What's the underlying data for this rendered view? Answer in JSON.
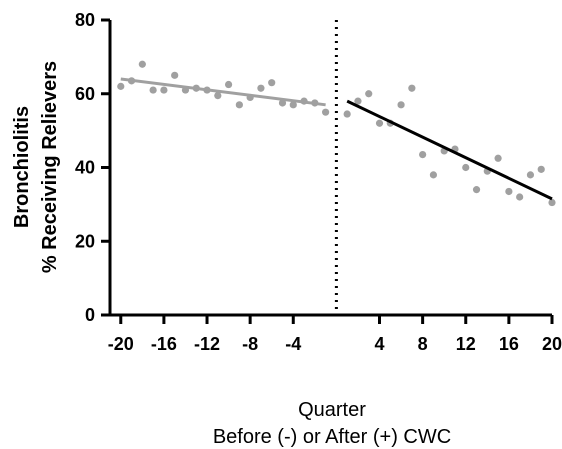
{
  "chart_data": {
    "type": "scatter",
    "xlabel": [
      "Quarter",
      "Before (-) or After (+) CWC"
    ],
    "ylabel": [
      "Bronchiolitis",
      "% Receiving Relievers"
    ],
    "xlim": [
      -21,
      20
    ],
    "ylim": [
      0,
      80
    ],
    "xticks": [
      -20,
      -16,
      -12,
      -8,
      -4,
      4,
      8,
      12,
      16,
      20
    ],
    "yticks": [
      0,
      20,
      40,
      60,
      80
    ],
    "intervention_line_x": 0,
    "grid": false,
    "legend": "none",
    "series": [
      {
        "color": "#a0a0a0",
        "x": [
          -20,
          -19,
          -18,
          -17,
          -16,
          -15,
          -14,
          -13,
          -12,
          -11,
          -10,
          -9,
          -8,
          -7,
          -6,
          -5,
          -4,
          -3,
          -2,
          -1
        ],
        "y": [
          62,
          63.5,
          68,
          61,
          61,
          65,
          61,
          61.5,
          61,
          59.5,
          62.5,
          57,
          59,
          61.5,
          63,
          57.5,
          57,
          58,
          57.5,
          55
        ]
      },
      {
        "color": "#a0a0a0",
        "x": [
          1,
          2,
          3,
          4,
          5,
          6,
          7,
          8,
          9,
          10,
          11,
          12,
          13,
          14,
          15,
          16,
          17,
          18,
          19,
          20
        ],
        "y": [
          54.5,
          58,
          60,
          52,
          52,
          57,
          61.5,
          43.5,
          38,
          44.5,
          45,
          40,
          34,
          39,
          42.5,
          33.5,
          32,
          38,
          39.5,
          30.5
        ]
      }
    ],
    "trend_lines": [
      {
        "color": "#a0a0a0",
        "x": [
          -20,
          -1
        ],
        "y": [
          64,
          57
        ]
      },
      {
        "color": "#000000",
        "x": [
          1,
          20
        ],
        "y": [
          58,
          31.5
        ]
      }
    ]
  }
}
